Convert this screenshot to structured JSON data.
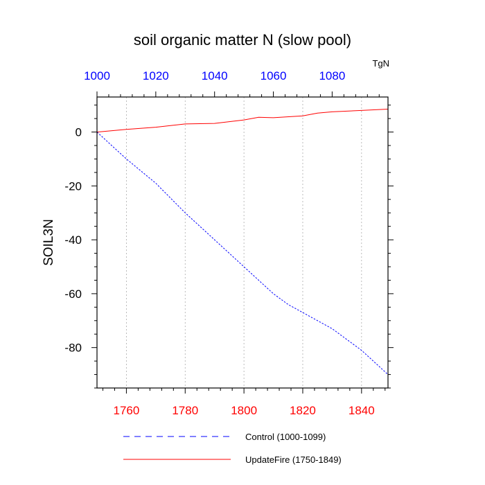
{
  "chart_data": {
    "type": "line",
    "title": "soil organic matter N (slow pool)",
    "ylabel": "SOIL3N",
    "units": "TgN",
    "ylim": [
      -95,
      13
    ],
    "yticks": [
      0,
      -20,
      -40,
      -60,
      -80
    ],
    "x_bottom": {
      "range": [
        1750,
        1849
      ],
      "ticks": [
        1760,
        1780,
        1800,
        1820,
        1840
      ],
      "color": "#ff0000"
    },
    "x_top": {
      "range": [
        1000,
        1099
      ],
      "ticks": [
        1000,
        1020,
        1040,
        1060,
        1080
      ],
      "color": "#0000ff"
    },
    "grid": "vertical dashed at bottom ticks",
    "series": [
      {
        "name": "Control (1000-1099)",
        "axis": "top",
        "color": "#0000ff",
        "dash": "dashed",
        "x": [
          1000,
          1010,
          1020,
          1030,
          1040,
          1050,
          1060,
          1065,
          1070,
          1080,
          1090,
          1099
        ],
        "y": [
          0,
          -10,
          -19,
          -30,
          -40,
          -50,
          -60,
          -64,
          -67,
          -73,
          -81,
          -90
        ]
      },
      {
        "name": "UpdateFire (1750-1849)",
        "axis": "bottom",
        "color": "#ff0000",
        "dash": "solid",
        "x": [
          1750,
          1760,
          1770,
          1780,
          1790,
          1800,
          1805,
          1810,
          1820,
          1825,
          1830,
          1840,
          1849
        ],
        "y": [
          0,
          1,
          1.8,
          3,
          3.2,
          4.5,
          5.5,
          5.3,
          6,
          7,
          7.5,
          8,
          8.5
        ]
      }
    ],
    "legend": [
      {
        "label": "Control (1000-1099)",
        "color": "#0000ff",
        "dash": "dashed"
      },
      {
        "label": "UpdateFire (1750-1849)",
        "color": "#ff0000",
        "dash": "solid"
      }
    ],
    "legend_position": "bottom"
  }
}
